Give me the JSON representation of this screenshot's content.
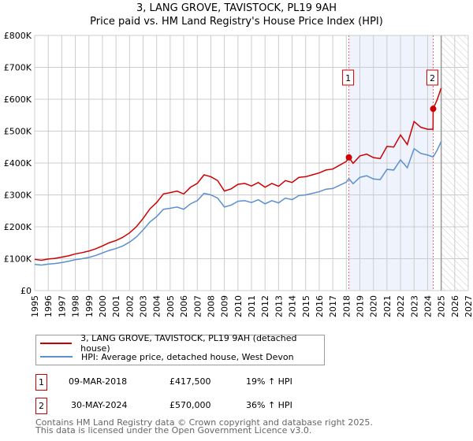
{
  "chart_data": {
    "type": "line",
    "title": "3, LANG GROVE, TAVISTOCK, PL19 9AH",
    "subtitle": "Price paid vs. HM Land Registry's House Price Index (HPI)",
    "xlim": [
      1995,
      2027
    ],
    "ylim": [
      0,
      800000
    ],
    "x_ticks": [
      "1995",
      "1996",
      "1997",
      "1998",
      "1999",
      "2000",
      "2001",
      "2002",
      "2003",
      "2004",
      "2005",
      "2006",
      "2007",
      "2008",
      "2009",
      "2010",
      "2011",
      "2012",
      "2013",
      "2014",
      "2015",
      "2016",
      "2017",
      "2018",
      "2019",
      "2020",
      "2021",
      "2022",
      "2023",
      "2024",
      "2025",
      "2026",
      "2027"
    ],
    "y_ticks": [
      {
        "v": 0,
        "l": "£0"
      },
      {
        "v": 100000,
        "l": "£100K"
      },
      {
        "v": 200000,
        "l": "£200K"
      },
      {
        "v": 300000,
        "l": "£300K"
      },
      {
        "v": 400000,
        "l": "£400K"
      },
      {
        "v": 500000,
        "l": "£500K"
      },
      {
        "v": 600000,
        "l": "£600K"
      },
      {
        "v": 700000,
        "l": "£700K"
      },
      {
        "v": 800000,
        "l": "£800K"
      }
    ],
    "grid": true,
    "shaded_range": [
      2018.19,
      2024.41
    ],
    "forecast_hatch_from": 2025.0,
    "series": [
      {
        "name": "3, LANG GROVE, TAVISTOCK, PL19 9AH (detached house)",
        "color": "#cc0000",
        "points": [
          [
            1995,
            98
          ],
          [
            1995.5,
            95
          ],
          [
            1996,
            99
          ],
          [
            1996.5,
            101
          ],
          [
            1997,
            105
          ],
          [
            1997.5,
            109
          ],
          [
            1998,
            115
          ],
          [
            1998.5,
            119
          ],
          [
            1999,
            124
          ],
          [
            1999.5,
            131
          ],
          [
            2000,
            140
          ],
          [
            2000.5,
            150
          ],
          [
            2001,
            157
          ],
          [
            2001.5,
            167
          ],
          [
            2002,
            181
          ],
          [
            2002.5,
            200
          ],
          [
            2003,
            226
          ],
          [
            2003.5,
            256
          ],
          [
            2004,
            276
          ],
          [
            2004.5,
            303
          ],
          [
            2005,
            307
          ],
          [
            2005.5,
            312
          ],
          [
            2006,
            303
          ],
          [
            2006.5,
            324
          ],
          [
            2007,
            336
          ],
          [
            2007.5,
            363
          ],
          [
            2008,
            357
          ],
          [
            2008.5,
            345
          ],
          [
            2009,
            312
          ],
          [
            2009.5,
            319
          ],
          [
            2010,
            333
          ],
          [
            2010.5,
            336
          ],
          [
            2011,
            328
          ],
          [
            2011.5,
            339
          ],
          [
            2012,
            324
          ],
          [
            2012.5,
            336
          ],
          [
            2013,
            327
          ],
          [
            2013.5,
            345
          ],
          [
            2014,
            339
          ],
          [
            2014.5,
            355
          ],
          [
            2015,
            357
          ],
          [
            2015.5,
            363
          ],
          [
            2016,
            369
          ],
          [
            2016.5,
            378
          ],
          [
            2017,
            381
          ],
          [
            2017.5,
            393
          ],
          [
            2018,
            405
          ],
          [
            2018.19,
            417.5
          ],
          [
            2018.5,
            399
          ],
          [
            2019,
            422
          ],
          [
            2019.5,
            428
          ],
          [
            2020,
            417
          ],
          [
            2020.5,
            414
          ],
          [
            2021,
            452
          ],
          [
            2021.5,
            450
          ],
          [
            2022,
            488
          ],
          [
            2022.5,
            458
          ],
          [
            2023,
            530
          ],
          [
            2023.5,
            512
          ],
          [
            2024,
            506
          ],
          [
            2024.4,
            506
          ],
          [
            2024.41,
            570
          ],
          [
            2024.7,
            598
          ],
          [
            2025,
            635
          ]
        ]
      },
      {
        "name": "HPI: Average price, detached house, West Devon",
        "color": "#5b8fd0",
        "points": [
          [
            1995,
            82
          ],
          [
            1995.5,
            80
          ],
          [
            1996,
            83
          ],
          [
            1996.5,
            85
          ],
          [
            1997,
            88
          ],
          [
            1997.5,
            92
          ],
          [
            1998,
            97
          ],
          [
            1998.5,
            100
          ],
          [
            1999,
            104
          ],
          [
            1999.5,
            110
          ],
          [
            2000,
            118
          ],
          [
            2000.5,
            126
          ],
          [
            2001,
            132
          ],
          [
            2001.5,
            140
          ],
          [
            2002,
            152
          ],
          [
            2002.5,
            168
          ],
          [
            2003,
            190
          ],
          [
            2003.5,
            215
          ],
          [
            2004,
            232
          ],
          [
            2004.5,
            255
          ],
          [
            2005,
            258
          ],
          [
            2005.5,
            262
          ],
          [
            2006,
            255
          ],
          [
            2006.5,
            272
          ],
          [
            2007,
            282
          ],
          [
            2007.5,
            305
          ],
          [
            2008,
            300
          ],
          [
            2008.5,
            290
          ],
          [
            2009,
            262
          ],
          [
            2009.5,
            268
          ],
          [
            2010,
            280
          ],
          [
            2010.5,
            282
          ],
          [
            2011,
            276
          ],
          [
            2011.5,
            285
          ],
          [
            2012,
            272
          ],
          [
            2012.5,
            282
          ],
          [
            2013,
            275
          ],
          [
            2013.5,
            290
          ],
          [
            2014,
            285
          ],
          [
            2014.5,
            298
          ],
          [
            2015,
            300
          ],
          [
            2015.5,
            305
          ],
          [
            2016,
            310
          ],
          [
            2016.5,
            318
          ],
          [
            2017,
            320
          ],
          [
            2017.5,
            330
          ],
          [
            2018,
            340
          ],
          [
            2018.19,
            351
          ],
          [
            2018.5,
            335
          ],
          [
            2019,
            355
          ],
          [
            2019.5,
            360
          ],
          [
            2020,
            350
          ],
          [
            2020.5,
            348
          ],
          [
            2021,
            380
          ],
          [
            2021.5,
            378
          ],
          [
            2022,
            410
          ],
          [
            2022.5,
            385
          ],
          [
            2023,
            445
          ],
          [
            2023.5,
            430
          ],
          [
            2024,
            425
          ],
          [
            2024.41,
            419
          ],
          [
            2024.7,
            440
          ],
          [
            2025,
            467
          ]
        ]
      }
    ],
    "y_unit": "thousands GBP",
    "sales": [
      {
        "id": "1",
        "x": 2018.19,
        "value": 417.5,
        "date": "09-MAR-2018",
        "price": "£417,500",
        "hpi": "19% ↑ HPI"
      },
      {
        "id": "2",
        "x": 2024.41,
        "value": 570,
        "date": "30-MAY-2024",
        "price": "£570,000",
        "hpi": "36% ↑ HPI"
      }
    ]
  },
  "footer": {
    "line1": "Contains HM Land Registry data © Crown copyright and database right 2025.",
    "line2": "This data is licensed under the Open Government Licence v3.0."
  }
}
